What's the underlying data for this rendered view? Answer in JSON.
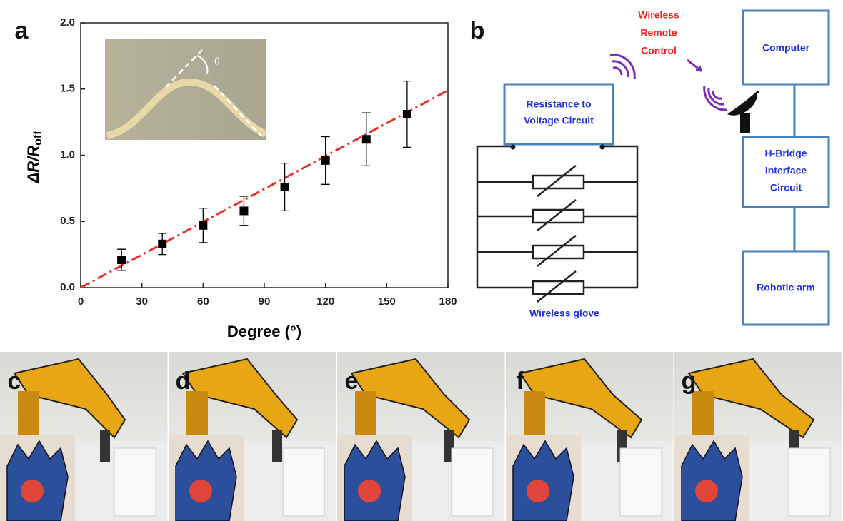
{
  "chart_data": {
    "type": "scatter",
    "x": [
      20,
      40,
      60,
      80,
      100,
      120,
      140,
      160
    ],
    "values": [
      0.21,
      0.33,
      0.47,
      0.58,
      0.76,
      0.96,
      1.12,
      1.31
    ],
    "errors": [
      0.08,
      0.08,
      0.13,
      0.11,
      0.18,
      0.18,
      0.2,
      0.25
    ],
    "color": "#000000",
    "fit": {
      "x": [
        0,
        180
      ],
      "values": [
        0,
        1.49
      ],
      "color": "#e8332a"
    },
    "xlim": [
      0,
      180
    ],
    "xticks": [
      0,
      30,
      60,
      90,
      120,
      150,
      180
    ],
    "ylim": [
      0,
      2
    ],
    "yticks": [
      {
        "value": 0,
        "label": "0.0"
      },
      {
        "value": 0.5,
        "label": "0.5"
      },
      {
        "value": 1,
        "label": "1.0"
      },
      {
        "value": 1.5,
        "label": "1.5"
      },
      {
        "value": 2,
        "label": "2.0"
      }
    ],
    "xlabel": "Degree (°)",
    "ylabel": {
      "main": "ΔR/R",
      "sub": "off"
    },
    "inset_label": "θ",
    "panel": "a"
  },
  "diagram": {
    "panel": "b",
    "remote": [
      "Wireless",
      "Remote",
      "Control"
    ],
    "circuit": [
      "Resistance to",
      "Voltage Circuit"
    ],
    "glove": "Wireless glove",
    "computer": "Computer",
    "hbridge": [
      "H-Bridge",
      "Interface",
      "Circuit"
    ],
    "arm": "Robotic arm"
  },
  "photos": {
    "panels": [
      "c",
      "d",
      "e",
      "f",
      "g"
    ]
  }
}
